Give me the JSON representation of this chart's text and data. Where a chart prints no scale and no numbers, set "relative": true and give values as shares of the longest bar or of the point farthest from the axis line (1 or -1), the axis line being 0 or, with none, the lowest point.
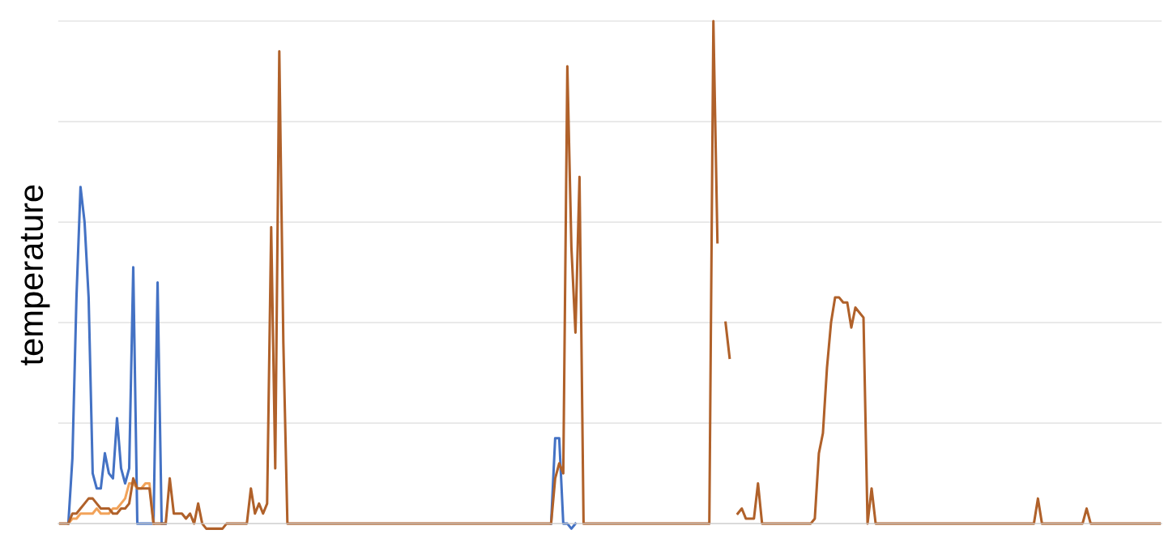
{
  "chart_data": {
    "type": "line",
    "relative": true,
    "ylabel": "temperature",
    "grid": "y",
    "line_style": "solid",
    "marker": "none",
    "categories": [
      null,
      null,
      null,
      null,
      null,
      null,
      null,
      null,
      null,
      null,
      null,
      null,
      null,
      null,
      null,
      null,
      null,
      null,
      null,
      null,
      null,
      null,
      null,
      null,
      null,
      null,
      null,
      null,
      null,
      null,
      null,
      null,
      null,
      null,
      null,
      null,
      null,
      null,
      null,
      null,
      null,
      null,
      null,
      null,
      null,
      null,
      null,
      null,
      null,
      null,
      null,
      null,
      null,
      null,
      null,
      null,
      null,
      null,
      null,
      null,
      null,
      null,
      null,
      null,
      null,
      null,
      null,
      null,
      null,
      null,
      null,
      null,
      null,
      null,
      null,
      null,
      null,
      null,
      null,
      null,
      null,
      null,
      null,
      null,
      null,
      null,
      null,
      null,
      null,
      null,
      null,
      null,
      null,
      null,
      null,
      null,
      null,
      null,
      null,
      null,
      null,
      null,
      null,
      null,
      null,
      null,
      null,
      null,
      null,
      null,
      null,
      null,
      null,
      null,
      null,
      null,
      null,
      null,
      null,
      null,
      null,
      null,
      null,
      null,
      null,
      null,
      null,
      null,
      null,
      null,
      null,
      null,
      null,
      null,
      null,
      null,
      null,
      null,
      null,
      null,
      null,
      null,
      null,
      null,
      null,
      null,
      null,
      null,
      null,
      null,
      null,
      null,
      null,
      null,
      null,
      null,
      null,
      null,
      null,
      null,
      null,
      null,
      null,
      null,
      null,
      null,
      null,
      null,
      null,
      null,
      null,
      null,
      null,
      null,
      null,
      null,
      null,
      null,
      null,
      null,
      null,
      null,
      null,
      null,
      null,
      null,
      null,
      null,
      null,
      null,
      null,
      null,
      null,
      null,
      null,
      null,
      null,
      null,
      null,
      null,
      null,
      null,
      null,
      null,
      null,
      null,
      null,
      null,
      null,
      null,
      null,
      null,
      null,
      null,
      null,
      null,
      null,
      null,
      null,
      null,
      null,
      null,
      null,
      null,
      null,
      null,
      null,
      null,
      null,
      null,
      null,
      null,
      null,
      null,
      null,
      null,
      null,
      null,
      null,
      null,
      null,
      null,
      null,
      null,
      null,
      null,
      null,
      null,
      null,
      null,
      null,
      null,
      null,
      null,
      null,
      null,
      null,
      null,
      null,
      null,
      null,
      null,
      null,
      null,
      null,
      null,
      null,
      null,
      null,
      null,
      null,
      null
    ],
    "series": [
      {
        "color": "#4472c4",
        "values": [
          null,
          null,
          0,
          0.13,
          0.45,
          0.67,
          0.6,
          0.45,
          0.1,
          0.07,
          0.07,
          0.14,
          0.1,
          0.09,
          0.21,
          0.11,
          0.08,
          0.11,
          0.51,
          0,
          0,
          0,
          0,
          0,
          0.48,
          0,
          0,
          null,
          null,
          null,
          null,
          null,
          null,
          null,
          null,
          null,
          null,
          null,
          null,
          null,
          null,
          null,
          null,
          null,
          null,
          null,
          null,
          null,
          null,
          null,
          null,
          null,
          null,
          null,
          null,
          null,
          null,
          null,
          null,
          null,
          null,
          null,
          null,
          null,
          null,
          null,
          null,
          null,
          null,
          null,
          null,
          null,
          null,
          null,
          null,
          null,
          null,
          null,
          null,
          null,
          null,
          null,
          null,
          null,
          null,
          null,
          null,
          null,
          null,
          null,
          null,
          null,
          null,
          null,
          null,
          null,
          null,
          null,
          null,
          null,
          null,
          null,
          null,
          null,
          null,
          null,
          null,
          null,
          null,
          null,
          null,
          null,
          null,
          null,
          null,
          null,
          null,
          null,
          null,
          null,
          null,
          0,
          0.17,
          0.17,
          0,
          0,
          -0.01,
          0,
          null,
          null,
          null,
          null,
          null,
          null,
          null,
          null,
          null,
          null,
          null,
          null,
          null,
          null,
          null,
          null,
          null,
          null,
          null,
          null,
          null,
          null,
          null,
          null,
          null,
          null,
          null,
          null,
          null,
          null,
          null,
          null,
          null,
          null,
          null,
          null,
          null,
          null,
          null,
          null,
          null,
          null,
          null,
          null,
          null,
          null,
          null,
          null,
          null,
          null,
          null,
          null,
          null,
          null,
          null,
          null,
          null,
          null,
          null,
          null,
          null,
          null,
          null,
          null,
          null,
          null,
          null,
          null,
          null,
          null,
          null,
          null,
          null,
          null,
          null,
          null,
          null,
          null,
          null,
          null,
          null,
          null,
          null,
          null,
          null,
          null,
          null,
          null,
          null,
          null,
          null,
          null,
          null,
          null,
          null,
          null,
          null,
          null,
          null,
          null,
          null,
          null,
          null,
          null,
          null,
          null,
          null,
          null,
          null,
          null,
          null,
          null,
          null,
          null,
          null,
          null,
          null,
          null,
          null,
          null,
          null,
          null,
          null,
          null,
          null,
          null,
          null,
          null,
          null,
          null,
          null,
          null,
          null,
          null,
          null,
          null,
          null,
          null,
          null,
          null,
          null,
          null,
          null,
          null
        ]
      },
      {
        "color": "#f2a35a",
        "values": [
          null,
          null,
          0,
          0.01,
          0.01,
          0.02,
          0.02,
          0.02,
          0.02,
          0.03,
          0.02,
          0.02,
          0.02,
          0.03,
          0.03,
          0.04,
          0.05,
          0.08,
          0.08,
          0.07,
          0.07,
          0.08,
          0.08,
          0,
          null,
          null,
          null,
          null,
          null,
          null,
          null,
          null,
          null,
          null,
          null,
          null,
          null,
          null,
          null,
          null,
          null,
          null,
          null,
          null,
          null,
          null,
          null,
          null,
          null,
          null,
          null,
          null,
          null,
          null,
          null,
          null,
          null,
          null,
          null,
          null,
          null,
          null,
          null,
          null,
          null,
          null,
          null,
          null,
          null,
          null,
          null,
          null,
          null,
          null,
          null,
          null,
          null,
          null,
          null,
          null,
          null,
          null,
          null,
          null,
          null,
          null,
          null,
          null,
          null,
          null,
          null,
          null,
          null,
          null,
          null,
          null,
          null,
          null,
          null,
          null,
          null,
          null,
          null,
          null,
          null,
          null,
          null,
          null,
          null,
          null,
          null,
          null,
          null,
          null,
          null,
          null,
          null,
          null,
          null,
          null,
          null,
          null,
          null,
          null,
          null,
          null,
          null,
          null,
          null,
          null,
          null,
          null,
          null,
          null,
          null,
          null,
          null,
          null,
          null,
          null,
          null,
          null,
          null,
          null,
          null,
          null,
          null,
          null,
          null,
          null,
          null,
          null,
          null,
          null,
          null,
          null,
          null,
          null,
          null,
          null,
          null,
          null,
          null,
          null,
          null,
          null,
          null,
          null,
          null,
          null,
          null,
          null,
          null,
          null,
          null,
          null,
          null,
          null,
          null,
          null,
          null,
          null,
          null,
          null,
          null,
          null,
          null,
          null,
          null,
          null,
          null,
          null,
          null,
          null,
          null,
          null,
          null,
          null,
          null,
          null,
          null,
          null,
          null,
          null,
          null,
          null,
          null,
          null,
          null,
          null,
          null,
          null,
          null,
          null,
          null,
          null,
          null,
          null,
          null,
          null,
          null,
          null,
          null,
          null,
          null,
          null,
          null,
          null,
          null,
          null,
          null,
          null,
          null,
          null,
          null,
          null,
          null,
          null,
          null,
          null,
          null,
          null,
          null,
          null,
          null,
          null,
          null,
          null,
          null,
          null,
          null,
          null,
          null,
          null,
          null,
          null,
          null,
          null,
          null,
          null,
          null,
          null,
          null,
          null,
          null,
          null,
          null,
          null,
          null,
          null,
          null,
          null
        ]
      },
      {
        "color": "#b0612a",
        "values": [
          0,
          0,
          0,
          0.02,
          0.02,
          0.03,
          0.04,
          0.05,
          0.05,
          0.04,
          0.03,
          0.03,
          0.03,
          0.02,
          0.02,
          0.03,
          0.03,
          0.04,
          0.09,
          0.07,
          0.07,
          0.07,
          0.07,
          0,
          0,
          0,
          0,
          0.09,
          0.02,
          0.02,
          0.02,
          0.01,
          0.02,
          0,
          0.04,
          0,
          -0.01,
          -0.01,
          -0.01,
          -0.01,
          -0.01,
          0,
          0,
          0,
          0,
          0,
          0,
          0.07,
          0.02,
          0.04,
          0.02,
          0.04,
          0.59,
          0.11,
          0.94,
          0.36,
          0,
          0,
          0,
          0,
          0,
          0,
          0,
          0,
          0,
          0,
          0,
          0,
          0,
          0,
          0,
          0,
          0,
          0,
          0,
          0,
          0,
          0,
          0,
          0,
          0,
          0,
          0,
          0,
          0,
          0,
          0,
          0,
          0,
          0,
          0,
          0,
          0,
          0,
          0,
          0,
          0,
          0,
          0,
          0,
          0,
          0,
          0,
          0,
          0,
          0,
          0,
          0,
          0,
          0,
          0,
          0,
          0,
          0,
          0,
          0,
          0,
          0,
          0,
          0,
          0,
          0,
          0.09,
          0.12,
          0.1,
          0.91,
          0.55,
          0.38,
          0.69,
          0,
          0,
          0,
          0,
          0,
          0,
          0,
          0,
          0,
          0,
          0,
          0,
          0,
          0,
          0,
          0,
          0,
          0,
          0,
          0,
          0,
          0,
          0,
          0,
          0,
          0,
          0,
          0,
          0,
          0,
          0,
          0,
          1,
          0.56,
          null,
          0.4,
          0.33,
          null,
          0.02,
          0.03,
          0.01,
          0.01,
          0.01,
          0.08,
          0,
          0,
          0,
          0,
          0,
          0,
          0,
          0,
          0,
          0,
          0,
          0,
          0,
          0.01,
          0.14,
          0.18,
          0.31,
          0.4,
          0.45,
          0.45,
          0.44,
          0.44,
          0.39,
          0.43,
          0.42,
          0.41,
          0,
          0.07,
          0,
          0,
          0,
          0,
          0,
          0,
          0,
          0,
          0,
          0,
          0,
          0,
          0,
          0,
          0,
          0,
          0,
          0,
          0,
          0,
          0,
          0,
          0,
          0,
          0,
          0,
          0,
          0,
          0,
          0,
          0,
          0,
          0,
          0,
          0,
          0,
          0,
          0,
          0,
          0,
          0.05,
          0,
          0,
          0,
          0,
          0,
          0,
          0,
          0,
          0,
          0,
          0,
          0.03,
          0,
          0,
          0,
          0,
          0,
          0,
          0,
          0,
          0,
          0,
          0,
          0,
          0,
          0,
          0,
          0,
          0,
          0
        ]
      }
    ]
  }
}
